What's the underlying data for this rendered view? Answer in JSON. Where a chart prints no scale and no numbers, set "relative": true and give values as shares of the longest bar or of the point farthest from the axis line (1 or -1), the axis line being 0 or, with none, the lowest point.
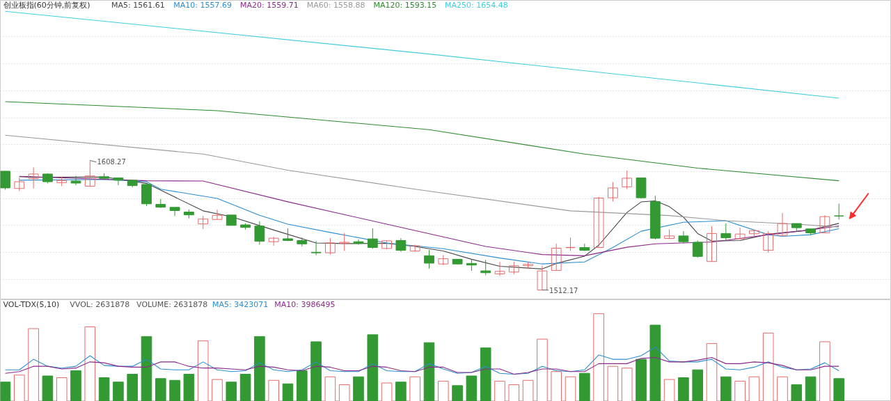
{
  "chart_data": [
    {
      "type": "candlestick",
      "title": "创业板指(60分钟,前复权)",
      "categories": [
        null,
        null,
        null,
        null,
        null,
        null,
        null,
        null,
        null,
        null,
        null,
        null,
        null,
        null,
        null,
        null,
        null,
        null,
        null,
        null,
        null,
        null,
        null,
        null,
        null,
        null,
        null,
        null,
        null,
        null,
        null,
        null,
        null,
        null,
        null,
        null,
        null,
        null,
        null,
        null,
        null,
        null,
        null,
        null,
        null,
        null,
        null,
        null,
        null,
        null,
        null,
        null,
        null,
        null,
        null,
        null,
        null,
        null,
        null,
        null
      ],
      "ohlc": [
        [
          1600.3,
          1600.3,
          1586.6,
          1587.9
        ],
        [
          1587.5,
          1595.6,
          1585.6,
          1592.5
        ],
        [
          1594.8,
          1603.1,
          1587.5,
          1598.2
        ],
        [
          1598.2,
          1598.8,
          1591.3,
          1592.5
        ],
        [
          1591.8,
          1596.2,
          1589.2,
          1593.4
        ],
        [
          1593.0,
          1596.8,
          1589.9,
          1591.5
        ],
        [
          1589.2,
          1608.27,
          1589.2,
          1596.8
        ],
        [
          1596.2,
          1598.8,
          1593.9,
          1595.0
        ],
        [
          1595.3,
          1595.3,
          1589.9,
          1593.6
        ],
        [
          1593.6,
          1593.6,
          1588.4,
          1589.6
        ],
        [
          1590.5,
          1590.5,
          1574.5,
          1576.1
        ],
        [
          1575.7,
          1579.7,
          1573.1,
          1573.6
        ],
        [
          1573.5,
          1573.5,
          1567.1,
          1571.1
        ],
        [
          1570.0,
          1571.9,
          1565.3,
          1567.9
        ],
        [
          1561.2,
          1567.1,
          1557.4,
          1564.8
        ],
        [
          1564.5,
          1571.9,
          1564.5,
          1567.6
        ],
        [
          1567.8,
          1567.8,
          1560.0,
          1560.1
        ],
        [
          1560.5,
          1561.7,
          1557.0,
          1558.6
        ],
        [
          1559.6,
          1563.2,
          1545.8,
          1548.4
        ],
        [
          1548.0,
          1551.6,
          1545.0,
          1550.6
        ],
        [
          1550.2,
          1557.9,
          1548.4,
          1548.9
        ],
        [
          1548.9,
          1551.1,
          1544.5,
          1546.4
        ],
        [
          1540.2,
          1548.5,
          1538.0,
          1539.8
        ],
        [
          1539.8,
          1550.6,
          1538.5,
          1547.1
        ],
        [
          1546.9,
          1554.4,
          1541.1,
          1547.6
        ],
        [
          1548.0,
          1549.7,
          1545.8,
          1546.8
        ],
        [
          1550.1,
          1557.9,
          1542.8,
          1543.7
        ],
        [
          1543.0,
          1548.7,
          1542.3,
          1548.7
        ],
        [
          1548.9,
          1550.6,
          1540.6,
          1541.6
        ],
        [
          1541.1,
          1545.8,
          1540.6,
          1545.0
        ],
        [
          1537.6,
          1541.9,
          1528.1,
          1532.1
        ],
        [
          1531.5,
          1538.1,
          1530.7,
          1535.4
        ],
        [
          1535.0,
          1535.0,
          1531.2,
          1531.5
        ],
        [
          1531.9,
          1535.0,
          1526.4,
          1530.7
        ],
        [
          1526.4,
          1534.5,
          1523.2,
          1525.0
        ],
        [
          1524.1,
          1533.0,
          1522.6,
          1526.0
        ],
        [
          1525.5,
          1533.3,
          1523.8,
          1530.2
        ],
        [
          1530.2,
          1533.0,
          1527.8,
          1531.2
        ],
        [
          1512.2,
          1530.2,
          1512.17,
          1526.4
        ],
        [
          1526.7,
          1546.6,
          1526.7,
          1543.2
        ],
        [
          1543.7,
          1551.1,
          1541.1,
          1543.8
        ],
        [
          1543.7,
          1546.6,
          1541.1,
          1541.6
        ],
        [
          1543.7,
          1581.3,
          1543.7,
          1580.4
        ],
        [
          1580.6,
          1592.2,
          1577.8,
          1587.9
        ],
        [
          1588.7,
          1600.8,
          1587.0,
          1595.1
        ],
        [
          1595.3,
          1595.6,
          1580.1,
          1580.6
        ],
        [
          1577.8,
          1582.1,
          1549.7,
          1550.6
        ],
        [
          1550.4,
          1557.2,
          1550.2,
          1552.3
        ],
        [
          1552.3,
          1555.8,
          1546.6,
          1548.0
        ],
        [
          1547.6,
          1548.9,
          1536.2,
          1537.1
        ],
        [
          1533.3,
          1559.6,
          1533.3,
          1554.1
        ],
        [
          1554.1,
          1561.5,
          1549.2,
          1550.9
        ],
        [
          1550.2,
          1558.4,
          1550.2,
          1553.7
        ],
        [
          1553.9,
          1557.0,
          1551.5,
          1556.2
        ],
        [
          1541.6,
          1555.8,
          1539.9,
          1554.1
        ],
        [
          1552.7,
          1569.3,
          1552.7,
          1561.5
        ],
        [
          1561.5,
          1561.5,
          1555.8,
          1558.4
        ],
        [
          1557.5,
          1557.5,
          1552.8,
          1554.6
        ],
        [
          1554.6,
          1567.6,
          1554.6,
          1566.6
        ],
        [
          1567.1,
          1576.2,
          1564.5,
          1567.0
        ]
      ],
      "colors": [
        "#339933",
        "#e86a6a",
        "#e86a6a",
        "#339933",
        "#e86a6a",
        "#339933",
        "#e86a6a",
        "#339933",
        "#339933",
        "#339933",
        "#339933",
        "#339933",
        "#339933",
        "#339933",
        "#e86a6a",
        "#e86a6a",
        "#339933",
        "#339933",
        "#339933",
        "#e86a6a",
        "#339933",
        "#339933",
        "#339933",
        "#e86a6a",
        "#e86a6a",
        "#339933",
        "#339933",
        "#e86a6a",
        "#339933",
        "#e86a6a",
        "#339933",
        "#e86a6a",
        "#339933",
        "#339933",
        "#339933",
        "#e86a6a",
        "#e86a6a",
        "#e86a6a",
        "#e86a6a",
        "#e86a6a",
        "#e86a6a",
        "#339933",
        "#e86a6a",
        "#e86a6a",
        "#e86a6a",
        "#339933",
        "#339933",
        "#e86a6a",
        "#339933",
        "#339933",
        "#e86a6a",
        "#339933",
        "#e86a6a",
        "#e86a6a",
        "#e86a6a",
        "#e86a6a",
        "#339933",
        "#339933",
        "#e86a6a",
        "#339933"
      ],
      "series": [
        {
          "name": "MA5: 1561.61",
          "type": "line",
          "color": "#444444",
          "values": [
            null,
            1596.3,
            1595.8,
            null,
            null,
            null,
            null,
            1596.0,
            null,
            null,
            1591.3,
            null,
            null,
            null,
            1570.9,
            null,
            1566.6,
            null,
            null,
            1556.7,
            null,
            null,
            1547.1,
            null,
            1546.6,
            null,
            null,
            1546.8,
            null,
            1544.5,
            null,
            1541.1,
            null,
            1535.0,
            null,
            1529.8,
            null,
            null,
            1527.8,
            1531.9,
            null,
            1537.3,
            1545.4,
            null,
            1569.7,
            1577.5,
            1578.3,
            1574.0,
            1566.2,
            1554.1,
            1548.5,
            null,
            1548.9,
            null,
            1553.6,
            null,
            null,
            1556.7,
            null,
            1561.6
          ]
        },
        {
          "name": "MA10: 1557.69",
          "type": "line",
          "color": "#2a8fd0",
          "values": [
            null,
            1593.6,
            null,
            null,
            null,
            null,
            null,
            1594.2,
            null,
            null,
            1592.5,
            1587.0,
            null,
            null,
            null,
            1580.1,
            null,
            null,
            1567.6,
            null,
            1561.0,
            null,
            null,
            1554.9,
            null,
            null,
            null,
            1547.1,
            null,
            null,
            null,
            1542.8,
            null,
            null,
            null,
            1535.9,
            null,
            null,
            1531.5,
            null,
            null,
            1533.0,
            null,
            1543.7,
            null,
            1555.8,
            null,
            null,
            1562.4,
            null,
            null,
            1563.6,
            null,
            null,
            1553.2,
            1552.0,
            null,
            1553.2,
            null,
            1557.7
          ]
        },
        {
          "name": "MA20: 1559.71",
          "type": "line",
          "color": "#8b2a8b",
          "values": [
            null,
            1596.5,
            null,
            null,
            null,
            null,
            null,
            null,
            null,
            null,
            1593.2,
            null,
            null,
            null,
            1593.0,
            null,
            null,
            null,
            null,
            null,
            1577.6,
            null,
            null,
            null,
            null,
            null,
            null,
            1561.0,
            null,
            null,
            null,
            null,
            null,
            null,
            1544.5,
            null,
            null,
            null,
            1538.5,
            null,
            null,
            1537.6,
            null,
            null,
            1543.9,
            null,
            1546.4,
            null,
            null,
            null,
            1547.8,
            1549.0,
            null,
            null,
            1553.2,
            null,
            null,
            1556.8,
            null,
            1559.7
          ]
        },
        {
          "name": "MA60: 1558.88",
          "type": "line",
          "color": "#999999",
          "values": [
            1627.0,
            null,
            null,
            null,
            null,
            null,
            null,
            null,
            null,
            null,
            null,
            null,
            null,
            null,
            1613.0,
            null,
            null,
            null,
            null,
            null,
            1601.0,
            null,
            null,
            null,
            null,
            null,
            null,
            null,
            null,
            1587.0,
            null,
            null,
            null,
            null,
            null,
            null,
            null,
            null,
            null,
            null,
            1570.9,
            null,
            null,
            null,
            null,
            null,
            null,
            1567.4,
            null,
            null,
            null,
            1563.6,
            null,
            null,
            null,
            null,
            1561.0,
            null,
            null,
            1558.9
          ]
        },
        {
          "name": "MA120: 1593.15",
          "type": "line",
          "color": "#2e8b2e",
          "values": [
            1651.9,
            null,
            null,
            null,
            null,
            null,
            null,
            null,
            null,
            null,
            null,
            null,
            null,
            null,
            null,
            1645.2,
            null,
            null,
            null,
            null,
            null,
            null,
            null,
            null,
            null,
            null,
            null,
            null,
            null,
            null,
            1631.1,
            null,
            null,
            null,
            null,
            null,
            null,
            null,
            null,
            null,
            null,
            1613.0,
            null,
            null,
            null,
            null,
            null,
            null,
            null,
            1602.6,
            null,
            null,
            null,
            null,
            null,
            null,
            null,
            null,
            null,
            1593.2
          ]
        },
        {
          "name": "MA250: 1654.48",
          "type": "line",
          "color": "#40cde0",
          "values": [
            1718.9,
            null,
            null,
            null,
            null,
            null,
            null,
            null,
            null,
            null,
            null,
            null,
            null,
            null,
            null,
            null,
            null,
            null,
            null,
            null,
            null,
            null,
            null,
            null,
            null,
            null,
            null,
            null,
            null,
            null,
            1687.2,
            null,
            null,
            null,
            null,
            null,
            null,
            null,
            null,
            null,
            null,
            null,
            null,
            null,
            null,
            null,
            null,
            null,
            null,
            null,
            null,
            null,
            null,
            null,
            null,
            null,
            null,
            null,
            null,
            1654.5
          ]
        }
      ],
      "annotations": [
        "1608.27",
        "1512.17"
      ],
      "ylim": [
        1505,
        1727
      ],
      "yticks": [
        {
          "value": 1520,
          "label": null
        },
        {
          "value": 1540,
          "label": null
        },
        {
          "value": 1560,
          "label": null
        },
        {
          "value": 1580,
          "label": null
        },
        {
          "value": 1600,
          "label": null
        },
        {
          "value": 1620,
          "label": null
        },
        {
          "value": 1640,
          "label": null
        },
        {
          "value": 1660,
          "label": null
        },
        {
          "value": 1680,
          "label": null
        },
        {
          "value": 1700,
          "label": null
        }
      ],
      "grid": "y",
      "legend": "top left",
      "tick_labels": false
    },
    {
      "type": "bar",
      "title": "VOL-TDX(5,10)",
      "relative": true,
      "categories": [
        null,
        null,
        null,
        null,
        null,
        null,
        null,
        null,
        null,
        null,
        null,
        null,
        null,
        null,
        null,
        null,
        null,
        null,
        null,
        null,
        null,
        null,
        null,
        null,
        null,
        null,
        null,
        null,
        null,
        null,
        null,
        null,
        null,
        null,
        null,
        null,
        null,
        null,
        null,
        null,
        null,
        null,
        null,
        null,
        null,
        null,
        null,
        null,
        null,
        null,
        null,
        null,
        null,
        null,
        null,
        null,
        null,
        null,
        null,
        null
      ],
      "values": [
        0.22,
        0.3,
        0.83,
        0.29,
        0.27,
        0.35,
        0.85,
        0.27,
        0.22,
        0.31,
        0.74,
        0.26,
        0.24,
        0.31,
        0.69,
        0.25,
        0.22,
        0.31,
        0.74,
        0.24,
        0.2,
        0.35,
        0.68,
        0.28,
        0.19,
        0.28,
        0.76,
        0.21,
        0.22,
        0.28,
        0.67,
        0.23,
        0.18,
        0.29,
        0.61,
        0.23,
        0.19,
        0.24,
        0.71,
        0.34,
        0.28,
        0.32,
        1,
        0.4,
        0.38,
        0.48,
        0.87,
        0.25,
        0.27,
        0.36,
        0.66,
        0.28,
        0.23,
        0.28,
        0.78,
        0.28,
        0.19,
        0.28,
        0.68,
        0.26
      ],
      "colors": [
        "#339933",
        "#e86a6a",
        "#e86a6a",
        "#339933",
        "#e86a6a",
        "#339933",
        "#e86a6a",
        "#339933",
        "#339933",
        "#339933",
        "#339933",
        "#339933",
        "#339933",
        "#339933",
        "#e86a6a",
        "#e86a6a",
        "#339933",
        "#339933",
        "#339933",
        "#e86a6a",
        "#339933",
        "#339933",
        "#339933",
        "#e86a6a",
        "#e86a6a",
        "#339933",
        "#339933",
        "#e86a6a",
        "#339933",
        "#e86a6a",
        "#339933",
        "#e86a6a",
        "#339933",
        "#339933",
        "#339933",
        "#e86a6a",
        "#e86a6a",
        "#e86a6a",
        "#e86a6a",
        "#e86a6a",
        "#e86a6a",
        "#339933",
        "#e86a6a",
        "#e86a6a",
        "#e86a6a",
        "#339933",
        "#339933",
        "#e86a6a",
        "#339933",
        "#339933",
        "#e86a6a",
        "#339933",
        "#e86a6a",
        "#e86a6a",
        "#e86a6a",
        "#e86a6a",
        "#339933",
        "#339933",
        "#e86a6a",
        "#339933"
      ],
      "series": [
        {
          "name": "MA5: 3423071",
          "type": "line",
          "color": "#2a8fd0",
          "values": [
            0.36,
            0.36,
            0.48,
            0.4,
            0.38,
            0.4,
            0.52,
            0.41,
            0.4,
            0.4,
            0.48,
            0.37,
            0.36,
            0.36,
            0.45,
            0.36,
            0.34,
            0.35,
            0.44,
            0.36,
            0.34,
            0.36,
            0.45,
            0.35,
            0.34,
            0.34,
            0.43,
            0.35,
            0.34,
            0.34,
            0.43,
            0.37,
            0.32,
            0.33,
            0.4,
            0.32,
            0.31,
            0.32,
            0.4,
            0.35,
            0.34,
            0.36,
            0.53,
            0.48,
            0.48,
            0.52,
            0.62,
            0.46,
            0.45,
            0.45,
            0.48,
            0.37,
            0.36,
            0.39,
            0.45,
            0.39,
            0.36,
            0.37,
            0.44,
            0.35
          ]
        },
        {
          "name": "MA10: 3986495",
          "type": "line",
          "color": "#8b2a8b",
          "values": [
            0.32,
            0.34,
            0.4,
            0.4,
            0.37,
            0.38,
            0.45,
            0.44,
            0.4,
            0.39,
            0.39,
            0.45,
            0.45,
            0.4,
            0.38,
            0.38,
            0.37,
            0.36,
            0.4,
            0.39,
            0.36,
            0.35,
            0.4,
            0.39,
            0.35,
            0.35,
            0.4,
            0.39,
            0.35,
            0.34,
            0.39,
            0.39,
            0.33,
            0.33,
            0.37,
            0.37,
            0.31,
            0.33,
            0.37,
            0.37,
            0.34,
            0.34,
            0.43,
            0.43,
            0.43,
            0.49,
            0.5,
            0.45,
            0.45,
            0.47,
            0.5,
            0.43,
            0.43,
            0.45,
            0.44,
            0.41,
            0.36,
            0.36,
            0.4,
            0.4
          ]
        }
      ],
      "annotations": [
        "VVOL: 2631878",
        "VOLUME: 2631878"
      ],
      "legend": "top left",
      "tick_labels": false
    }
  ]
}
